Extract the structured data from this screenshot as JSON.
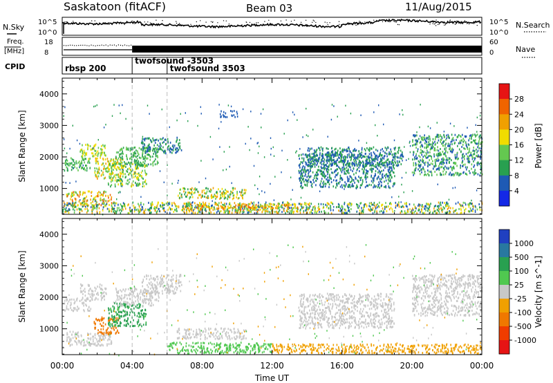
{
  "header": {
    "station": "Saskatoon (fitACF)",
    "beam": "Beam 03",
    "date": "11/Aug/2015"
  },
  "noise_panel": {
    "left_label": "N.Sky",
    "right_label": "N.Search",
    "left_ticks": [
      "10^5",
      "10^0"
    ],
    "right_ticks": [
      "10^5",
      "10^0"
    ]
  },
  "freq_panel": {
    "left_label_line1": "Freq.",
    "left_label_line2": "[MHz]",
    "left_ticks": [
      "18",
      "8"
    ],
    "right_label": "Nave",
    "right_ticks": [
      "60",
      "0"
    ]
  },
  "cpid_panel": {
    "label": "CPID",
    "programs": [
      {
        "name": "rbsp 200",
        "start_hour": 0
      },
      {
        "name": "twofsound -3503",
        "start_hour": 4
      },
      {
        "name": "twofsound 3503",
        "start_hour": 6
      }
    ]
  },
  "chart_data": [
    {
      "type": "heatmap",
      "panel": "power",
      "ylabel": "Slant Range [km]",
      "ylim": [
        180,
        4500
      ],
      "xlim": [
        0,
        24
      ],
      "yticks": [
        "1000",
        "2000",
        "3000",
        "4000"
      ],
      "ytick_values": [
        1000,
        2000,
        3000,
        4000
      ],
      "colorbar_label": "Power [dB]",
      "colorbar_ticks": [
        "4",
        "8",
        "12",
        "16",
        "20",
        "24",
        "28"
      ],
      "colorbar_colors": [
        "#1428e6",
        "#1e5ab4",
        "#28a050",
        "#64c850",
        "#f0dc00",
        "#f0a000",
        "#f06400",
        "#e61414"
      ],
      "scatter_regions": [
        {
          "x": [
            0.1,
            1.6
          ],
          "y": [
            1550,
            1950
          ],
          "values": [
            8,
            16
          ]
        },
        {
          "x": [
            1.0,
            2.5
          ],
          "y": [
            1900,
            2400
          ],
          "values": [
            12,
            20
          ]
        },
        {
          "x": [
            0.2,
            2.8
          ],
          "y": [
            450,
            900
          ],
          "values": [
            12,
            28
          ]
        },
        {
          "x": [
            1.8,
            3.5
          ],
          "y": [
            1300,
            1950
          ],
          "values": [
            12,
            24
          ]
        },
        {
          "x": [
            2.6,
            4.8
          ],
          "y": [
            1050,
            1800
          ],
          "values": [
            8,
            20
          ]
        },
        {
          "x": [
            3.0,
            5.5
          ],
          "y": [
            1700,
            2300
          ],
          "values": [
            8,
            16
          ]
        },
        {
          "x": [
            4.5,
            6.8
          ],
          "y": [
            2100,
            2600
          ],
          "values": [
            4,
            12
          ]
        },
        {
          "x": [
            6.5,
            10.5
          ],
          "y": [
            650,
            1000
          ],
          "values": [
            8,
            24
          ]
        },
        {
          "x": [
            9.0,
            10.0
          ],
          "y": [
            3250,
            3450
          ],
          "values": [
            4,
            8
          ]
        },
        {
          "x": [
            13.5,
            19.0
          ],
          "y": [
            1000,
            2100
          ],
          "values": [
            4,
            12
          ]
        },
        {
          "x": [
            14.0,
            19.5
          ],
          "y": [
            1700,
            2300
          ],
          "values": [
            4,
            12
          ]
        },
        {
          "x": [
            20.0,
            24.0
          ],
          "y": [
            1400,
            2700
          ],
          "values": [
            4,
            16
          ]
        },
        {
          "x": [
            0.0,
            24.0
          ],
          "y": [
            200,
            550
          ],
          "values": [
            4,
            24
          ]
        },
        {
          "x": [
            7.0,
            13.5
          ],
          "y": [
            250,
            500
          ],
          "values": [
            12,
            28
          ]
        }
      ]
    },
    {
      "type": "heatmap",
      "panel": "velocity",
      "ylabel": "Slant Range [km]",
      "xlabel": "Time UT",
      "ylim": [
        180,
        4500
      ],
      "xlim": [
        0,
        24
      ],
      "xticks": [
        "00:00",
        "04:00",
        "08:00",
        "12:00",
        "16:00",
        "20:00",
        "00:00"
      ],
      "xtick_values": [
        0,
        4,
        8,
        12,
        16,
        20,
        24
      ],
      "yticks": [
        "1000",
        "2000",
        "3000",
        "4000"
      ],
      "ytick_values": [
        1000,
        2000,
        3000,
        4000
      ],
      "colorbar_label": "Velocity [m s^-1]",
      "colorbar_ticks": [
        "1000",
        "500",
        "100",
        "25",
        "-25",
        "-100",
        "-500",
        "-1000"
      ],
      "colorbar_colors": [
        "#2040c0",
        "#2878a0",
        "#28a050",
        "#50c850",
        "#c8c8c8",
        "#f0a000",
        "#f07800",
        "#f03c00",
        "#e61414"
      ],
      "scatter_regions": [
        {
          "x": [
            0.1,
            1.6
          ],
          "y": [
            1550,
            1950
          ],
          "values": [
            -25,
            25
          ]
        },
        {
          "x": [
            1.0,
            2.5
          ],
          "y": [
            1900,
            2400
          ],
          "values": [
            -25,
            25
          ]
        },
        {
          "x": [
            0.2,
            2.8
          ],
          "y": [
            450,
            900
          ],
          "values": [
            -25,
            25
          ]
        },
        {
          "x": [
            1.8,
            3.2
          ],
          "y": [
            800,
            1350
          ],
          "values": [
            -500,
            -100
          ]
        },
        {
          "x": [
            2.6,
            4.8
          ],
          "y": [
            1050,
            1800
          ],
          "values": [
            25,
            500
          ]
        },
        {
          "x": [
            3.0,
            5.5
          ],
          "y": [
            1700,
            2300
          ],
          "values": [
            -25,
            25
          ]
        },
        {
          "x": [
            4.5,
            6.8
          ],
          "y": [
            2100,
            2700
          ],
          "values": [
            -25,
            25
          ]
        },
        {
          "x": [
            6.5,
            10.5
          ],
          "y": [
            650,
            1000
          ],
          "values": [
            -25,
            25
          ]
        },
        {
          "x": [
            13.5,
            19.0
          ],
          "y": [
            1000,
            2100
          ],
          "values": [
            -25,
            25
          ]
        },
        {
          "x": [
            20.0,
            24.0
          ],
          "y": [
            1400,
            2700
          ],
          "values": [
            -25,
            25
          ]
        },
        {
          "x": [
            6.0,
            12.0
          ],
          "y": [
            200,
            550
          ],
          "values": [
            25,
            100
          ]
        },
        {
          "x": [
            12.0,
            24.0
          ],
          "y": [
            200,
            500
          ],
          "values": [
            -100,
            -25
          ]
        }
      ]
    }
  ]
}
